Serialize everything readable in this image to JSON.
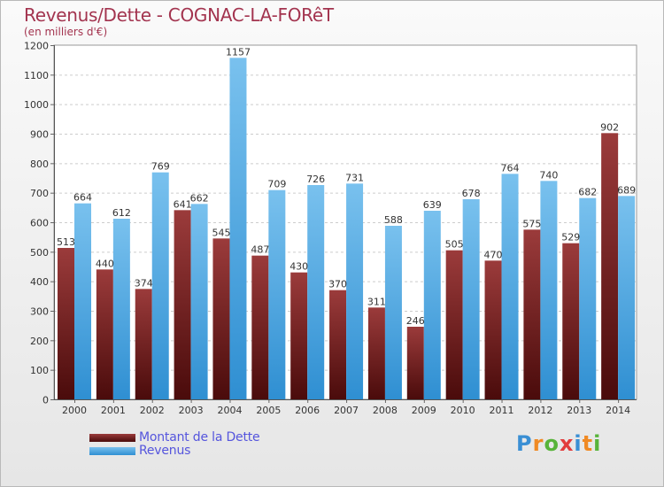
{
  "header": {
    "title": "Revenus/Dette - COGNAC-LA-FORêT",
    "subtitle": "(en milliers d'€)"
  },
  "legend": {
    "debt_label": "Montant de la Dette",
    "revenue_label": "Revenus"
  },
  "logo": {
    "text": "Proxiti",
    "letters": [
      {
        "ch": "P",
        "color": "#3a8fd4"
      },
      {
        "ch": "r",
        "color": "#f08a24"
      },
      {
        "ch": "o",
        "color": "#58b43a"
      },
      {
        "ch": "x",
        "color": "#e23c3c"
      },
      {
        "ch": "i",
        "color": "#3a8fd4"
      },
      {
        "ch": "t",
        "color": "#f08a24"
      },
      {
        "ch": "i",
        "color": "#58b43a"
      }
    ]
  },
  "colors": {
    "debt_top": "#9b3b3b",
    "debt_bottom": "#4a0b0b",
    "revenue_top": "#79c1ee",
    "revenue_bottom": "#2f8fd2",
    "title": "#a3344f",
    "legend_text": "#5555dd"
  },
  "chart_data": {
    "type": "bar",
    "title": "Revenus/Dette - COGNAC-LA-FORêT",
    "ylabel": "(en milliers d'€)",
    "xlabel": "",
    "ylim": [
      0,
      1200
    ],
    "yticks": [
      0,
      100,
      200,
      300,
      400,
      500,
      600,
      700,
      800,
      900,
      1000,
      1100,
      1200
    ],
    "grid": true,
    "categories": [
      "2000",
      "2001",
      "2002",
      "2003",
      "2004",
      "2005",
      "2006",
      "2007",
      "2008",
      "2009",
      "2010",
      "2011",
      "2012",
      "2013",
      "2014"
    ],
    "series": [
      {
        "name": "Montant de la Dette",
        "values": [
          513,
          440,
          374,
          641,
          545,
          487,
          430,
          370,
          311,
          246,
          505,
          470,
          575,
          529,
          902
        ]
      },
      {
        "name": "Revenus",
        "values": [
          664,
          612,
          769,
          662,
          1157,
          709,
          726,
          731,
          588,
          639,
          678,
          764,
          740,
          682,
          689
        ]
      }
    ]
  }
}
